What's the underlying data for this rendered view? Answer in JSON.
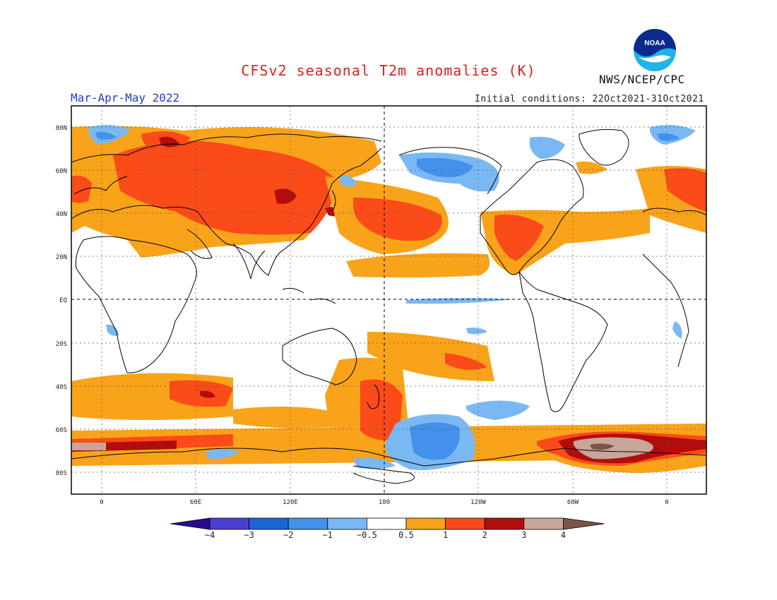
{
  "header": {
    "title": "CFSv2 seasonal T2m anomalies (K)",
    "agency": "NWS/NCEP/CPC",
    "season": "Mar-Apr-May 2022",
    "initial_conditions": "Initial conditions: 22Oct2021-31Oct2021",
    "logo_text": "NOAA"
  },
  "axes": {
    "lat_labels": [
      "80N",
      "60N",
      "40N",
      "20N",
      "EQ",
      "20S",
      "40S",
      "60S",
      "80S"
    ],
    "lon_labels": [
      "0",
      "60E",
      "120E",
      "180",
      "120W",
      "60W",
      "0"
    ]
  },
  "colorbar": {
    "labels": [
      "-4",
      "-3",
      "-2",
      "-1",
      "-0.5",
      "0.5",
      "1",
      "2",
      "3",
      "4"
    ],
    "colors": [
      "#2a0a8f",
      "#4a3fcf",
      "#1f63d8",
      "#4391ea",
      "#7ab8f3",
      "#ffffff",
      "#f9a31a",
      "#fb4b18",
      "#b20d0d",
      "#c9a69a",
      "#7a5547"
    ]
  },
  "colors": {
    "title": "#e0201b",
    "season": "#1f3fd0",
    "frame": "#000000"
  }
}
